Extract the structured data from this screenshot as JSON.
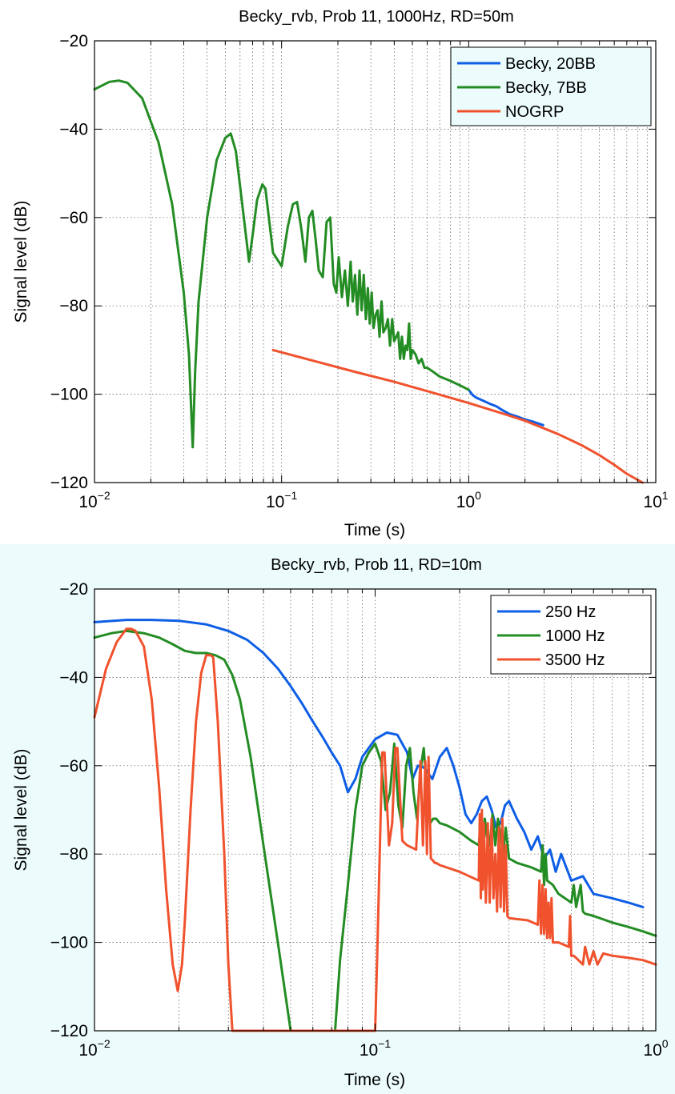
{
  "colors": {
    "blue": "#0e5ee6",
    "green": "#238c23",
    "red": "#f0522d",
    "bottom_bg": "#ecfcfc",
    "legend_bg": "#ecfcfc"
  },
  "chart_data": [
    {
      "type": "line",
      "title": "Becky_rvb, Prob 11, 1000Hz, RD=50m",
      "xlabel": "Time (s)",
      "ylabel": "Signal level (dB)",
      "xscale": "log",
      "xlim": [
        0.01,
        10
      ],
      "ylim": [
        -120,
        -20
      ],
      "xticks": [
        {
          "base": "10",
          "exp": "−2"
        },
        {
          "base": "10",
          "exp": "−1"
        },
        {
          "base": "10",
          "exp": "0"
        },
        {
          "base": "10",
          "exp": "1"
        }
      ],
      "yticks": [
        "−20",
        "−40",
        "−60",
        "−80",
        "−100",
        "−120"
      ],
      "grid": true,
      "legend_position": "top-right",
      "series": [
        {
          "name": "Becky, 20BB",
          "color": "#0e5ee6",
          "x": [
            1.0,
            1.05,
            1.1,
            1.2,
            1.3,
            1.4,
            1.5,
            1.65,
            1.8,
            2.0,
            2.2,
            2.5
          ],
          "y": [
            -99,
            -100.2,
            -100.8,
            -101.5,
            -102.2,
            -102.7,
            -103.5,
            -104.5,
            -105,
            -105.7,
            -106.2,
            -107
          ]
        },
        {
          "name": "Becky, 7BB",
          "color": "#238c23",
          "x": [
            0.01,
            0.012,
            0.0135,
            0.015,
            0.018,
            0.022,
            0.026,
            0.03,
            0.032,
            0.0335,
            0.0345,
            0.036,
            0.04,
            0.045,
            0.05,
            0.0535,
            0.057,
            0.062,
            0.067,
            0.07,
            0.074,
            0.079,
            0.082,
            0.086,
            0.09,
            0.1,
            0.108,
            0.115,
            0.121,
            0.128,
            0.134,
            0.14,
            0.146,
            0.152,
            0.158,
            0.166,
            0.174,
            0.182,
            0.19,
            0.196,
            0.202,
            0.21,
            0.218,
            0.226,
            0.234,
            0.24,
            0.247,
            0.254,
            0.261,
            0.268,
            0.275,
            0.282,
            0.289,
            0.296,
            0.303,
            0.31,
            0.318,
            0.326,
            0.334,
            0.342,
            0.35,
            0.36,
            0.37,
            0.38,
            0.39,
            0.4,
            0.41,
            0.42,
            0.43,
            0.44,
            0.45,
            0.46,
            0.47,
            0.48,
            0.49,
            0.5,
            0.52,
            0.54,
            0.56,
            0.58,
            0.6,
            0.65,
            0.7,
            0.8,
            0.9,
            1.0
          ],
          "y": [
            -31,
            -29.3,
            -29,
            -29.5,
            -33,
            -43,
            -57,
            -77,
            -91,
            -112,
            -95,
            -79,
            -60,
            -47,
            -42,
            -41,
            -45,
            -58,
            -70,
            -64,
            -56,
            -52.5,
            -53.5,
            -61,
            -68,
            -71,
            -62,
            -57,
            -56.5,
            -63,
            -70,
            -60,
            -58.5,
            -65,
            -72,
            -73.5,
            -61,
            -60,
            -75,
            -77,
            -69,
            -78,
            -72,
            -80,
            -70,
            -79,
            -73,
            -82,
            -72,
            -81,
            -73,
            -83,
            -76,
            -84,
            -77,
            -85,
            -82,
            -81,
            -87,
            -79,
            -86,
            -85,
            -83,
            -89,
            -83,
            -88,
            -87,
            -86,
            -92,
            -87,
            -92,
            -89,
            -90,
            -84,
            -92,
            -90,
            -91,
            -93,
            -92,
            -94,
            -94,
            -95,
            -96,
            -97,
            -98,
            -99
          ]
        },
        {
          "name": "NOGRP",
          "color": "#f0522d",
          "x": [
            0.09,
            0.15,
            0.25,
            0.4,
            0.6,
            1.0,
            1.5,
            2.0,
            3.0,
            4.0,
            5.0,
            6.0,
            7.0,
            8.5
          ],
          "y": [
            -90,
            -92.5,
            -95,
            -97.2,
            -99.3,
            -102,
            -104.3,
            -106,
            -109,
            -111.5,
            -113.8,
            -116,
            -118,
            -120
          ]
        }
      ]
    },
    {
      "type": "line",
      "title": "Becky_rvb, Prob 11, RD=10m",
      "xlabel": "Time (s)",
      "ylabel": "Signal level (dB)",
      "xscale": "log",
      "xlim": [
        0.01,
        1
      ],
      "ylim": [
        -120,
        -20
      ],
      "xticks": [
        {
          "base": "10",
          "exp": "−2"
        },
        {
          "base": "10",
          "exp": "−1"
        },
        {
          "base": "10",
          "exp": "0"
        }
      ],
      "yticks": [
        "−20",
        "−40",
        "−60",
        "−80",
        "−100",
        "−120"
      ],
      "grid": true,
      "legend_position": "top-right",
      "series": [
        {
          "name": "250 Hz",
          "color": "#0e5ee6",
          "x": [
            0.01,
            0.013,
            0.016,
            0.02,
            0.025,
            0.03,
            0.035,
            0.04,
            0.045,
            0.05,
            0.055,
            0.06,
            0.065,
            0.07,
            0.075,
            0.08,
            0.085,
            0.09,
            0.1,
            0.11,
            0.12,
            0.13,
            0.136,
            0.142,
            0.15,
            0.16,
            0.17,
            0.18,
            0.19,
            0.2,
            0.21,
            0.22,
            0.23,
            0.24,
            0.25,
            0.26,
            0.27,
            0.28,
            0.29,
            0.3,
            0.32,
            0.34,
            0.36,
            0.38,
            0.4,
            0.42,
            0.44,
            0.46,
            0.5,
            0.55,
            0.6,
            0.7,
            0.8,
            0.9
          ],
          "y": [
            -27.5,
            -27,
            -27,
            -27.2,
            -28,
            -29.5,
            -31.5,
            -34.5,
            -38,
            -42,
            -46,
            -50,
            -53.5,
            -57,
            -60,
            -66,
            -63,
            -58,
            -54,
            -52.5,
            -53,
            -57,
            -63,
            -60,
            -60.5,
            -63,
            -58,
            -56,
            -60,
            -65,
            -71,
            -73,
            -71,
            -68,
            -67,
            -70,
            -74,
            -73,
            -69,
            -68,
            -72,
            -75,
            -79,
            -76,
            -81,
            -79,
            -84,
            -80,
            -86,
            -85,
            -89,
            -90,
            -91,
            -92
          ]
        },
        {
          "name": "1000 Hz",
          "color": "#238c23",
          "x": [
            0.01,
            0.0115,
            0.013,
            0.015,
            0.017,
            0.019,
            0.021,
            0.023,
            0.025,
            0.027,
            0.029,
            0.031,
            0.033,
            0.036,
            0.04,
            0.045,
            0.05,
            0.052,
            0.072,
            0.075,
            0.08,
            0.085,
            0.09,
            0.095,
            0.1,
            0.105,
            0.109,
            0.113,
            0.117,
            0.121,
            0.125,
            0.129,
            0.133,
            0.137,
            0.141,
            0.145,
            0.149,
            0.153,
            0.157,
            0.161,
            0.165,
            0.17,
            0.18,
            0.2,
            0.22,
            0.234,
            0.238,
            0.242,
            0.246,
            0.25,
            0.256,
            0.262,
            0.268,
            0.274,
            0.28,
            0.286,
            0.292,
            0.3,
            0.32,
            0.36,
            0.39,
            0.395,
            0.4,
            0.405,
            0.41,
            0.42,
            0.43,
            0.44,
            0.45,
            0.5,
            0.51,
            0.52,
            0.54,
            0.55,
            0.56,
            0.6,
            0.7,
            0.8,
            0.9,
            1.0
          ],
          "y": [
            -31,
            -30,
            -29.5,
            -30,
            -31,
            -32.5,
            -34,
            -34.5,
            -34.5,
            -35,
            -36,
            -39.5,
            -45,
            -58,
            -78,
            -100,
            -120,
            -120,
            -120,
            -104,
            -87,
            -70,
            -60,
            -57,
            -55,
            -59,
            -70,
            -66,
            -55,
            -69,
            -74,
            -60,
            -56,
            -66,
            -72,
            -61,
            -56,
            -66,
            -73,
            -72,
            -72,
            -73,
            -73.5,
            -75,
            -77,
            -78,
            -73,
            -78,
            -72,
            -76,
            -78,
            -71,
            -78,
            -72,
            -76,
            -80,
            -74,
            -81,
            -82,
            -83,
            -84,
            -78,
            -87,
            -80,
            -86,
            -86.5,
            -87,
            -88,
            -89,
            -91,
            -87,
            -92,
            -87,
            -93,
            -93.5,
            -94,
            -95.5,
            -96.5,
            -97.5,
            -98.5
          ]
        },
        {
          "name": "3500 Hz",
          "color": "#f0522d",
          "x": [
            0.01,
            0.011,
            0.012,
            0.013,
            0.0135,
            0.014,
            0.015,
            0.016,
            0.017,
            0.018,
            0.019,
            0.0198,
            0.0205,
            0.021,
            0.022,
            0.023,
            0.024,
            0.025,
            0.026,
            0.0265,
            0.0275,
            0.029,
            0.03,
            0.031,
            0.032,
            0.0332,
            0.1,
            0.1015,
            0.104,
            0.106,
            0.108,
            0.112,
            0.115,
            0.118,
            0.12,
            0.125,
            0.13,
            0.14,
            0.145,
            0.148,
            0.151,
            0.153,
            0.155,
            0.158,
            0.161,
            0.163,
            0.165,
            0.17,
            0.2,
            0.234,
            0.236,
            0.238,
            0.24,
            0.242,
            0.244,
            0.248,
            0.252,
            0.256,
            0.26,
            0.264,
            0.268,
            0.272,
            0.276,
            0.28,
            0.284,
            0.288,
            0.292,
            0.296,
            0.3,
            0.35,
            0.38,
            0.385,
            0.39,
            0.395,
            0.4,
            0.405,
            0.41,
            0.415,
            0.42,
            0.425,
            0.43,
            0.45,
            0.49,
            0.495,
            0.5,
            0.51,
            0.52,
            0.53,
            0.55,
            0.56,
            0.58,
            0.6,
            0.62,
            0.65,
            0.7,
            0.8,
            0.9,
            1.0
          ],
          "y": [
            -49,
            -38,
            -32,
            -29,
            -29,
            -29.5,
            -33,
            -45,
            -65,
            -88,
            -105,
            -111,
            -105,
            -95,
            -70,
            -50,
            -39,
            -35,
            -35,
            -35.5,
            -50,
            -80,
            -105,
            -120,
            -120,
            -120,
            -120,
            -105,
            -78,
            -57,
            -57,
            -78,
            -73,
            -56,
            -56,
            -77,
            -78,
            -79,
            -59,
            -78,
            -59,
            -80,
            -58,
            -81,
            -81.5,
            -82,
            -82,
            -82.5,
            -84,
            -86,
            -71,
            -90,
            -70,
            -88,
            -73,
            -91,
            -73,
            -91,
            -72,
            -90,
            -80,
            -93,
            -74,
            -92,
            -72,
            -93,
            -78,
            -94,
            -94.5,
            -95,
            -96,
            -86,
            -98,
            -87,
            -98,
            -88,
            -99,
            -91,
            -99,
            -90,
            -100,
            -100,
            -101,
            -94,
            -103,
            -103,
            -103.5,
            -104,
            -105,
            -101,
            -105,
            -102,
            -105,
            -102.5,
            -103,
            -103.5,
            -104,
            -105
          ]
        }
      ]
    }
  ]
}
